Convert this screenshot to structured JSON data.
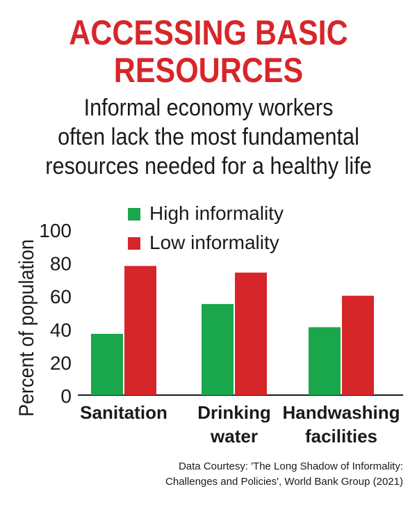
{
  "header": {
    "title_line1": "ACCESSING BASIC",
    "title_line2": "RESOURCES",
    "subtitle_line1": "Informal economy workers",
    "subtitle_line2": "often lack the most fundamental",
    "subtitle_line3": "resources needed for a healthy life"
  },
  "footer": {
    "credit_line1": "Data Courtesy: 'The Long Shadow of Informality:",
    "credit_line2": "Challenges and Policies', World Bank Group (2021)"
  },
  "colors": {
    "title": "#d7262a",
    "high_informality": "#1aa64a",
    "low_informality": "#d7262a"
  },
  "chart_data": {
    "type": "bar",
    "title": "",
    "ylabel": "Percent of population",
    "xlabel": "",
    "ylim": [
      0,
      100
    ],
    "yticks": [
      0,
      20,
      40,
      60,
      80,
      100
    ],
    "legend_position": "top-left",
    "grid": false,
    "categories": [
      [
        "Sanitation"
      ],
      [
        "Drinking",
        "water"
      ],
      [
        "Handwashing",
        "facilities"
      ]
    ],
    "series": [
      {
        "name": "High informality",
        "color": "#1aa64a",
        "values": [
          37,
          55,
          41
        ]
      },
      {
        "name": "Low informality",
        "color": "#d7262a",
        "values": [
          78,
          74,
          60
        ]
      }
    ]
  }
}
